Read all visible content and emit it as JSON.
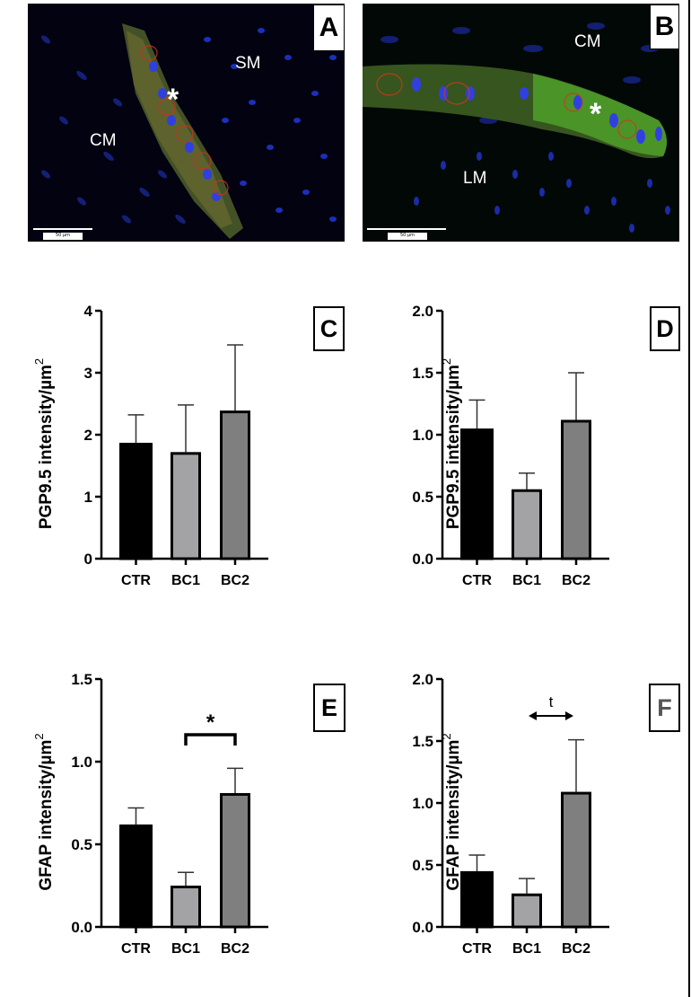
{
  "panels": {
    "A": {
      "label": "A",
      "regions": [
        "SM",
        "CM"
      ],
      "marker": "*",
      "scale_bar": "50 µm",
      "stain_colors": {
        "nuclei": "#1a2fd8",
        "pgp": "#c8321e",
        "gfap": "#5fbf2a"
      }
    },
    "B": {
      "label": "B",
      "regions": [
        "CM",
        "LM"
      ],
      "marker": "*",
      "scale_bar": "50 µm"
    },
    "C": {
      "label": "C"
    },
    "D": {
      "label": "D"
    },
    "E": {
      "label": "E"
    },
    "F": {
      "label": "F"
    }
  },
  "chart_data": [
    {
      "id": "C",
      "type": "bar",
      "title": "",
      "xlabel": "",
      "ylabel": "PGP9.5 intensity/µm²",
      "ylabel_main": "PGP9.5 intensity/µm",
      "ylabel_sup": "2",
      "categories": [
        "CTR",
        "BC1",
        "BC2"
      ],
      "values": [
        1.87,
        1.72,
        2.39
      ],
      "error_upper": [
        2.32,
        2.48,
        3.45
      ],
      "ylim": [
        0,
        4
      ],
      "yticks": [
        "0",
        "1",
        "2",
        "3",
        "4"
      ],
      "ytick_values": [
        0,
        1,
        2,
        3,
        4
      ],
      "bar_colors": [
        "#000000",
        "#a3a3a6",
        "#7f7f7f"
      ],
      "grid": false,
      "annotations": []
    },
    {
      "id": "D",
      "type": "bar",
      "title": "",
      "xlabel": "",
      "ylabel": "PGP9.5 intensity/µm²",
      "ylabel_main": "PGP9.5 intensity/µm",
      "ylabel_sup": "2",
      "categories": [
        "CTR",
        "BC1",
        "BC2"
      ],
      "values": [
        1.05,
        0.56,
        1.12
      ],
      "error_upper": [
        1.28,
        0.69,
        1.5
      ],
      "ylim": [
        0,
        2.0
      ],
      "yticks": [
        "0.0",
        "0.5",
        "1.0",
        "1.5",
        "2.0"
      ],
      "ytick_values": [
        0,
        0.5,
        1.0,
        1.5,
        2.0
      ],
      "bar_colors": [
        "#000000",
        "#a3a3a6",
        "#7f7f7f"
      ],
      "grid": false,
      "annotations": []
    },
    {
      "id": "E",
      "type": "bar",
      "title": "",
      "xlabel": "",
      "ylabel": "GFAP intensity/µm²",
      "ylabel_main": "GFAP intensity/µm",
      "ylabel_sup": "2",
      "categories": [
        "CTR",
        "BC1",
        "BC2"
      ],
      "values": [
        0.62,
        0.25,
        0.81
      ],
      "error_upper": [
        0.72,
        0.33,
        0.96
      ],
      "ylim": [
        0,
        1.5
      ],
      "yticks": [
        "0.0",
        "0.5",
        "1.0",
        "1.5"
      ],
      "ytick_values": [
        0,
        0.5,
        1.0,
        1.5
      ],
      "bar_colors": [
        "#000000",
        "#a3a3a6",
        "#7f7f7f"
      ],
      "grid": false,
      "annotations": [
        {
          "type": "significance-bracket",
          "from": "BC1",
          "to": "BC2",
          "text": "*"
        }
      ]
    },
    {
      "id": "F",
      "type": "bar",
      "title": "",
      "xlabel": "",
      "ylabel": "GFAP intensity/µm²",
      "ylabel_main": "GFAP intensity/µm",
      "ylabel_sup": "2",
      "categories": [
        "CTR",
        "BC1",
        "BC2"
      ],
      "values": [
        0.45,
        0.27,
        1.09
      ],
      "error_upper": [
        0.58,
        0.39,
        1.51
      ],
      "ylim": [
        0,
        2.0
      ],
      "yticks": [
        "0.0",
        "0.5",
        "1.0",
        "1.5",
        "2.0"
      ],
      "ytick_values": [
        0,
        0.5,
        1.0,
        1.5,
        2.0
      ],
      "bar_colors": [
        "#000000",
        "#a3a3a6",
        "#7f7f7f"
      ],
      "grid": false,
      "annotations": [
        {
          "type": "trend-arrow",
          "from": "BC1",
          "to": "BC2",
          "text": "t"
        }
      ]
    }
  ]
}
